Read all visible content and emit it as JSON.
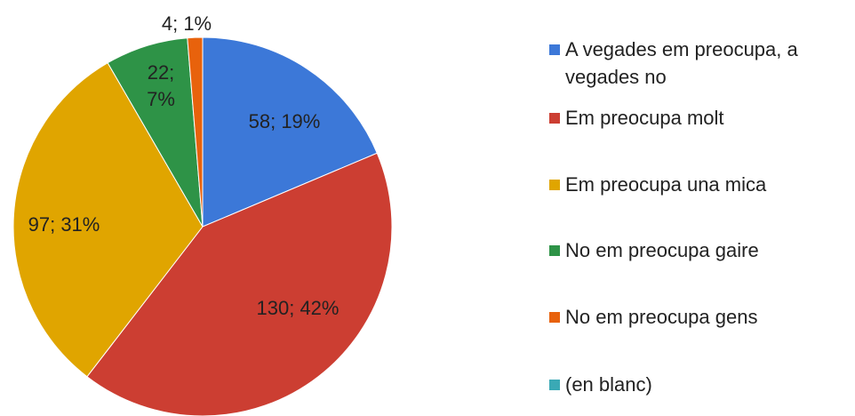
{
  "chart_data": {
    "type": "pie",
    "categories": [
      "A vegades em preocupa, a vegades no",
      "Em preocupa molt",
      "Em preocupa una mica",
      "No em preocupa gaire",
      "No em preocupa gens",
      "(en blanc)"
    ],
    "values": [
      58,
      130,
      97,
      22,
      4,
      0
    ],
    "value_labels": [
      "58; 19%",
      "130; 42%",
      "97; 31%",
      "22; 7%",
      "4; 1%",
      null
    ],
    "colors": [
      "#3c78d8",
      "#cc3e32",
      "#e0a500",
      "#2e9347",
      "#e8620c",
      "#3aa9b5"
    ],
    "legend": "right"
  }
}
